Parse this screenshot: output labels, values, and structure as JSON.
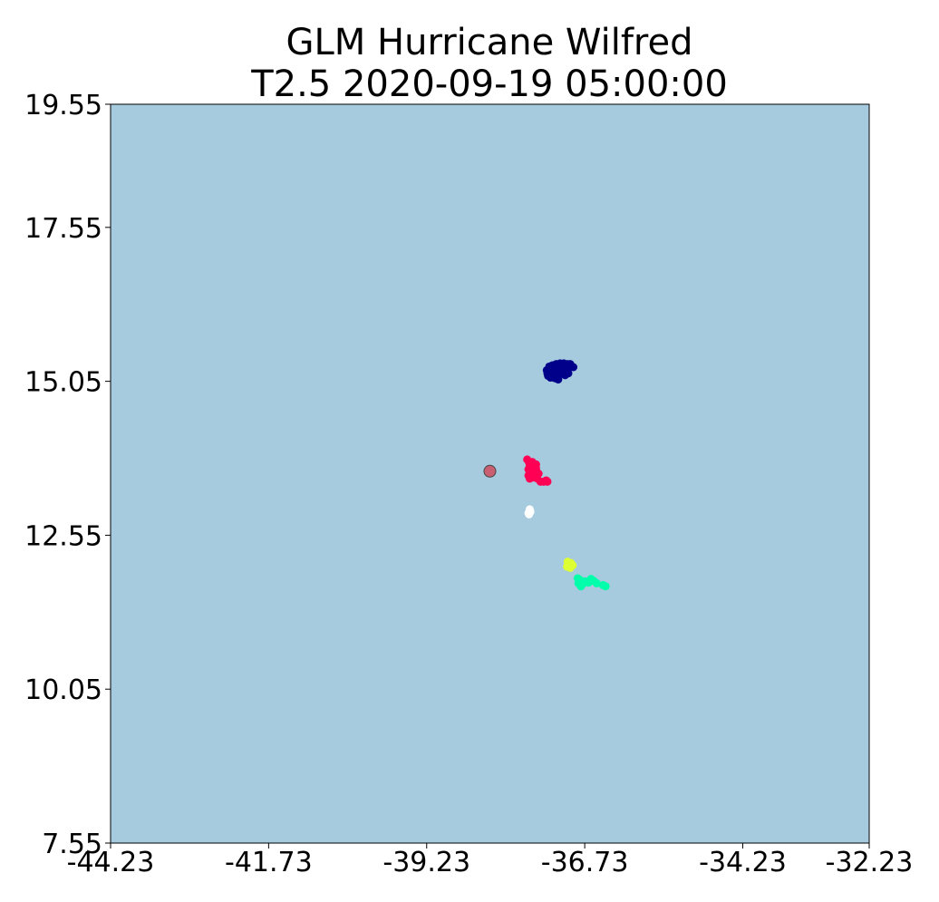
{
  "chart_data": {
    "type": "scatter",
    "title_line1": "GLM Hurricane Wilfred",
    "title_line2": "T2.5 2020-09-19 05:00:00",
    "xlabel": "",
    "ylabel": "",
    "xlim": [
      -44.23,
      -32.23
    ],
    "ylim": [
      7.55,
      19.55
    ],
    "xticks": [
      -44.23,
      -41.73,
      -39.23,
      -36.73,
      -34.23,
      -32.23
    ],
    "xtick_labels": [
      "-44.23",
      "-41.73",
      "-39.23",
      "-36.73",
      "-34.23",
      "-32.23"
    ],
    "yticks": [
      7.55,
      10.05,
      12.55,
      15.05,
      17.55,
      19.55
    ],
    "ytick_labels": [
      "7.55",
      "10.05",
      "12.55",
      "15.05",
      "17.55",
      "19.55"
    ],
    "grid": false,
    "background_color": "#a6cade",
    "center_marker": {
      "x": -38.23,
      "y": 13.59,
      "color": "#c86072"
    },
    "series": [
      {
        "color": "#00008b",
        "points": [
          [
            -37.29,
            15.29
          ],
          [
            -37.24,
            15.31
          ],
          [
            -37.18,
            15.33
          ],
          [
            -37.12,
            15.34
          ],
          [
            -37.06,
            15.34
          ],
          [
            -37.0,
            15.33
          ],
          [
            -36.96,
            15.33
          ],
          [
            -36.91,
            15.28
          ],
          [
            -37.33,
            15.23
          ],
          [
            -37.28,
            15.26
          ],
          [
            -37.22,
            15.27
          ],
          [
            -37.16,
            15.28
          ],
          [
            -37.1,
            15.29
          ],
          [
            -37.04,
            15.29
          ],
          [
            -36.98,
            15.27
          ],
          [
            -37.32,
            15.18
          ],
          [
            -37.26,
            15.2
          ],
          [
            -37.2,
            15.22
          ],
          [
            -37.14,
            15.23
          ],
          [
            -37.08,
            15.24
          ],
          [
            -37.02,
            15.22
          ],
          [
            -36.99,
            15.18
          ],
          [
            -37.31,
            15.14
          ],
          [
            -37.25,
            15.15
          ],
          [
            -37.2,
            15.17
          ],
          [
            -37.14,
            15.18
          ],
          [
            -37.08,
            15.19
          ],
          [
            -37.04,
            15.15
          ],
          [
            -37.27,
            15.11
          ],
          [
            -37.2,
            15.1
          ],
          [
            -37.15,
            15.08
          ],
          [
            -37.05,
            15.16
          ]
        ]
      },
      {
        "color": "#ff0055",
        "points": [
          [
            -37.64,
            13.78
          ],
          [
            -37.61,
            13.73
          ],
          [
            -37.6,
            13.68
          ],
          [
            -37.62,
            13.62
          ],
          [
            -37.6,
            13.57
          ],
          [
            -37.62,
            13.52
          ],
          [
            -37.6,
            13.47
          ],
          [
            -37.56,
            13.74
          ],
          [
            -37.55,
            13.69
          ],
          [
            -37.54,
            13.64
          ],
          [
            -37.56,
            13.59
          ],
          [
            -37.55,
            13.54
          ],
          [
            -37.54,
            13.49
          ],
          [
            -37.5,
            13.7
          ],
          [
            -37.5,
            13.64
          ],
          [
            -37.49,
            13.58
          ],
          [
            -37.5,
            13.52
          ],
          [
            -37.48,
            13.47
          ],
          [
            -37.46,
            13.55
          ],
          [
            -37.43,
            13.42
          ],
          [
            -37.38,
            13.42
          ],
          [
            -37.34,
            13.44
          ],
          [
            -37.32,
            13.42
          ]
        ]
      },
      {
        "color": "#ffffff",
        "points": [
          [
            -37.6,
            12.97
          ],
          [
            -37.59,
            12.93
          ],
          [
            -37.61,
            12.89
          ],
          [
            -37.62,
            12.91
          ]
        ]
      },
      {
        "color": "#ddff33",
        "points": [
          [
            -37.0,
            12.12
          ],
          [
            -36.95,
            12.1
          ],
          [
            -36.97,
            12.06
          ],
          [
            -37.01,
            12.04
          ],
          [
            -36.92,
            12.06
          ],
          [
            -36.96,
            12.02
          ]
        ]
      },
      {
        "color": "#00ffaa",
        "points": [
          [
            -36.84,
            11.85
          ],
          [
            -36.8,
            11.82
          ],
          [
            -36.83,
            11.77
          ],
          [
            -36.79,
            11.72
          ],
          [
            -36.76,
            11.76
          ],
          [
            -36.72,
            11.8
          ],
          [
            -36.67,
            11.78
          ],
          [
            -36.63,
            11.84
          ],
          [
            -36.59,
            11.81
          ],
          [
            -36.54,
            11.77
          ],
          [
            -36.44,
            11.74
          ],
          [
            -36.4,
            11.72
          ]
        ]
      }
    ]
  }
}
